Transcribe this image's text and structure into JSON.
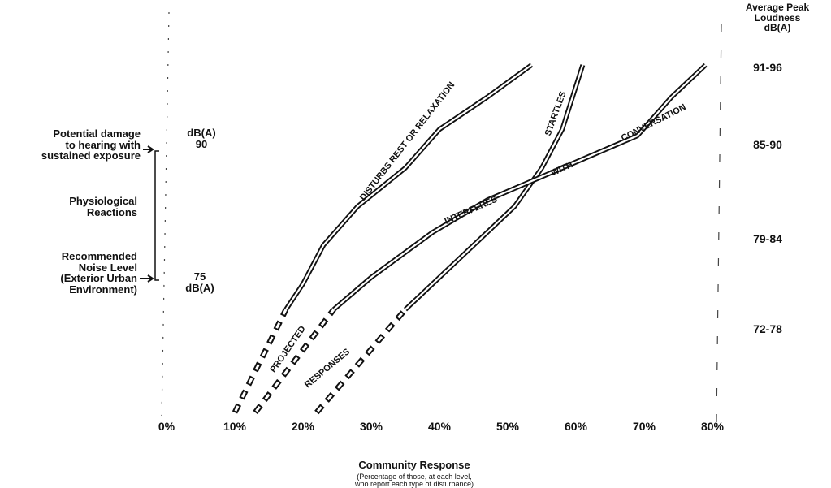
{
  "chart_data": {
    "type": "line",
    "xlabel": "Community Response",
    "xlabel_note": "(Percentage of those, at each level,\nwho report each type of disturbance)",
    "x_ticks": [
      "0%",
      "10%",
      "20%",
      "30%",
      "40%",
      "50%",
      "60%",
      "70%",
      "80%"
    ],
    "xlim": [
      0,
      80
    ],
    "right_axis_title": "Average Peak\nLoudness\ndB(A)",
    "right_axis_levels": [
      "91-96",
      "85-90",
      "79-84",
      "72-78"
    ],
    "left_annotations": {
      "damage": "Potential damage\nto hearing with\nsustained exposure",
      "physio": "Physiological\nReactions",
      "recommended": "Recommended\nNoise Level\n(Exterior Urban\nEnvironment)",
      "db90": "dB(A)\n90",
      "db75": "75\ndB(A)"
    },
    "series": [
      {
        "name": "DISTURBS REST OR RELAXATION",
        "measured": [
          [
            17.5,
            75
          ],
          [
            20,
            77
          ],
          [
            23,
            80
          ],
          [
            28,
            83
          ],
          [
            35,
            86
          ],
          [
            40,
            89
          ],
          [
            47,
            91.5
          ],
          [
            53.5,
            94
          ]
        ],
        "projected": [
          [
            10,
            67
          ],
          [
            17.5,
            75
          ]
        ]
      },
      {
        "name": "STARTLES",
        "measured": [
          [
            35,
            75
          ],
          [
            45,
            80
          ],
          [
            51,
            83
          ],
          [
            55,
            86
          ],
          [
            58,
            89
          ],
          [
            61,
            94
          ]
        ],
        "projected": [
          [
            22,
            67
          ],
          [
            35,
            75
          ]
        ]
      },
      {
        "name": "INTERFERES WITH CONVERSATION",
        "measured": [
          [
            24.5,
            75
          ],
          [
            30,
            77.5
          ],
          [
            39,
            81
          ],
          [
            47,
            83.5
          ],
          [
            58,
            86
          ],
          [
            69,
            88.5
          ],
          [
            74,
            91.5
          ],
          [
            79,
            94
          ]
        ],
        "projected": [
          [
            13,
            67
          ],
          [
            24.5,
            75
          ]
        ]
      }
    ],
    "segment_labels": {
      "projected": "PROJECTED",
      "responses": "RESPONSES",
      "interferes": "INTERFERES",
      "with": "WITH",
      "conversation": "CONVERSATION"
    }
  }
}
